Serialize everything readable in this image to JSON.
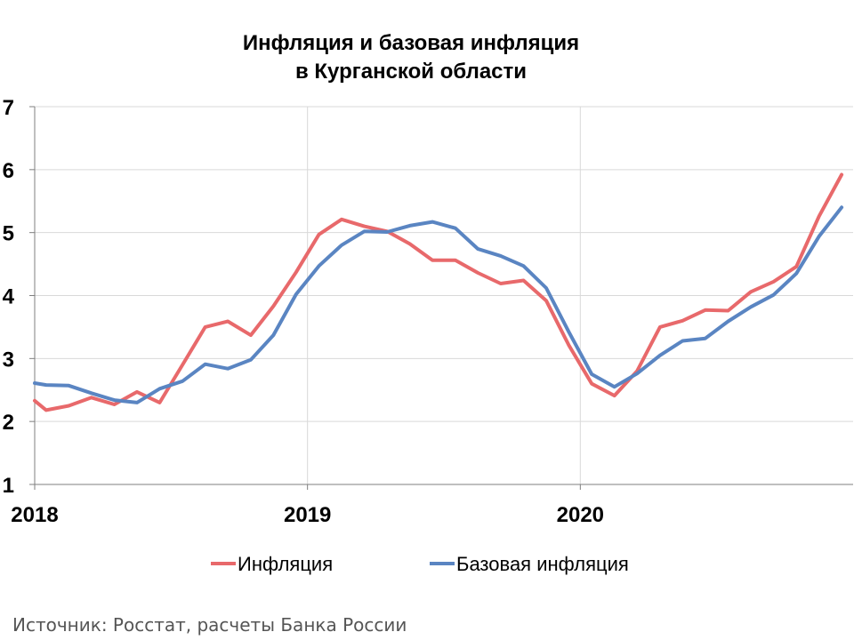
{
  "chart_data": {
    "type": "line",
    "title_lines": [
      "Инфляция и базовая инфляция",
      "в  Курганской области"
    ],
    "xlabel": "",
    "ylabel": "",
    "ylim": [
      1,
      7
    ],
    "yticks": [
      1,
      2,
      3,
      4,
      5,
      6,
      7
    ],
    "xlim": [
      2018.0,
      2021.0
    ],
    "xticks": [
      2018,
      2019,
      2020
    ],
    "grid": true,
    "legend_position": "bottom",
    "colors": {
      "Инфляция": "#E8696B",
      "Базовая инфляция": "#5A85C2"
    },
    "series": [
      {
        "name": "Инфляция",
        "x": [
          2018.0,
          2018.042,
          2018.125,
          2018.208,
          2018.292,
          2018.375,
          2018.458,
          2018.542,
          2018.625,
          2018.708,
          2018.792,
          2018.875,
          2018.958,
          2019.042,
          2019.125,
          2019.208,
          2019.292,
          2019.375,
          2019.458,
          2019.542,
          2019.625,
          2019.708,
          2019.792,
          2019.875,
          2019.958,
          2020.042,
          2020.125,
          2020.208,
          2020.292,
          2020.375,
          2020.458,
          2020.542,
          2020.625,
          2020.708,
          2020.792,
          2020.875,
          2020.958
        ],
        "values": [
          2.33,
          2.18,
          2.25,
          2.38,
          2.27,
          2.47,
          2.3,
          2.9,
          3.5,
          3.59,
          3.37,
          3.83,
          4.37,
          4.97,
          5.21,
          5.1,
          5.02,
          4.82,
          4.56,
          4.56,
          4.36,
          4.19,
          4.24,
          3.92,
          3.21,
          2.6,
          2.41,
          2.8,
          3.5,
          3.6,
          3.77,
          3.76,
          4.06,
          4.22,
          4.46,
          5.26,
          5.92
        ]
      },
      {
        "name": "Базовая инфляция",
        "x": [
          2018.0,
          2018.042,
          2018.125,
          2018.208,
          2018.292,
          2018.375,
          2018.458,
          2018.542,
          2018.625,
          2018.708,
          2018.792,
          2018.875,
          2018.958,
          2019.042,
          2019.125,
          2019.208,
          2019.292,
          2019.375,
          2019.458,
          2019.542,
          2019.625,
          2019.708,
          2019.792,
          2019.875,
          2019.958,
          2020.042,
          2020.125,
          2020.208,
          2020.292,
          2020.375,
          2020.458,
          2020.542,
          2020.625,
          2020.708,
          2020.792,
          2020.875,
          2020.958
        ],
        "values": [
          2.61,
          2.58,
          2.57,
          2.45,
          2.34,
          2.3,
          2.52,
          2.64,
          2.91,
          2.84,
          2.98,
          3.37,
          4.02,
          4.47,
          4.8,
          5.02,
          5.01,
          5.11,
          5.17,
          5.07,
          4.74,
          4.63,
          4.47,
          4.12,
          3.42,
          2.75,
          2.55,
          2.76,
          3.05,
          3.28,
          3.32,
          3.59,
          3.82,
          4.01,
          4.35,
          4.94,
          5.4
        ]
      }
    ]
  },
  "footer": {
    "source": "Источник: Росстат, расчеты Банка России"
  }
}
